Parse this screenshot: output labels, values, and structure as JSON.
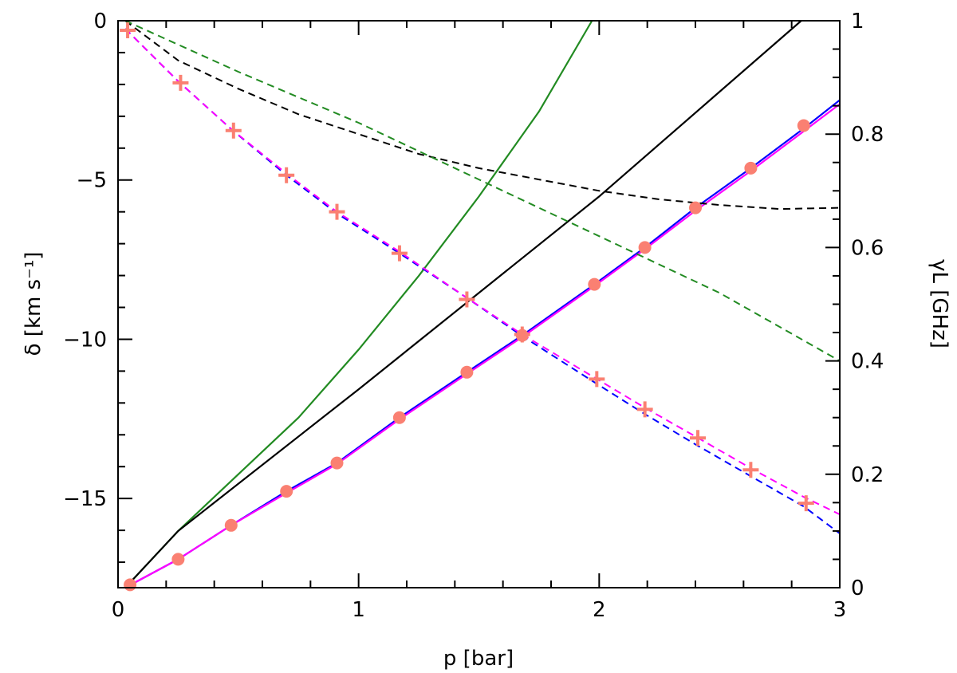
{
  "chart_data": {
    "type": "line",
    "x_axis": {
      "label": "p  [bar]",
      "range": [
        0,
        3
      ],
      "ticks": [
        "0",
        "1",
        "2",
        "3"
      ],
      "tick_values": [
        0,
        1,
        2,
        3
      ]
    },
    "y_left": {
      "label": "δ  [km s⁻¹]",
      "range": [
        -17.8,
        0
      ],
      "ticks": [
        "0",
        "−5",
        "−10",
        "−15"
      ],
      "tick_values": [
        0,
        -5,
        -10,
        -15
      ]
    },
    "y_right": {
      "label": "γL  [GHz]",
      "range": [
        0,
        1
      ],
      "ticks": [
        "0",
        "0.2",
        "0.4",
        "0.6",
        "0.8",
        "1"
      ],
      "tick_values": [
        0,
        0.2,
        0.4,
        0.6,
        0.8,
        1
      ]
    },
    "grid": false,
    "legend": "none",
    "series": [
      {
        "axis": "right",
        "style": "solid",
        "color": "#228b22",
        "x": [
          0.03,
          0.25,
          0.5,
          0.75,
          1.0,
          1.25,
          1.5,
          1.75,
          1.97
        ],
        "y": [
          0.0,
          0.1,
          0.2,
          0.3,
          0.42,
          0.55,
          0.69,
          0.84,
          1.0
        ]
      },
      {
        "axis": "right",
        "style": "solid",
        "color": "#000000",
        "x": [
          0.03,
          0.25,
          1.0,
          2.0,
          2.84
        ],
        "y": [
          0.0,
          0.1,
          0.35,
          0.69,
          1.0
        ]
      },
      {
        "axis": "right",
        "style": "solid",
        "color": "#0000ff",
        "x": [
          0.03,
          0.25,
          0.47,
          0.7,
          0.91,
          1.17,
          1.45,
          1.68,
          1.98,
          2.19,
          2.4,
          2.63,
          2.85,
          3.0
        ],
        "y": [
          0.0,
          0.05,
          0.11,
          0.17,
          0.22,
          0.3,
          0.38,
          0.445,
          0.535,
          0.6,
          0.67,
          0.74,
          0.81,
          0.86
        ]
      },
      {
        "axis": "right",
        "style": "solid",
        "color": "#ff00ff",
        "x": [
          0.03,
          0.25,
          0.47,
          0.7,
          0.91,
          1.17,
          1.45,
          1.68,
          1.98,
          2.19,
          2.4,
          2.63,
          2.85,
          3.0
        ],
        "y": [
          0.0,
          0.05,
          0.11,
          0.167,
          0.218,
          0.297,
          0.377,
          0.442,
          0.532,
          0.597,
          0.665,
          0.735,
          0.805,
          0.853
        ]
      },
      {
        "axis": "left",
        "style": "dashed",
        "color": "#0000ff",
        "x": [
          0.03,
          0.25,
          0.47,
          0.7,
          0.91,
          1.17,
          1.45,
          1.68,
          1.98,
          2.19,
          2.4,
          2.63,
          2.85,
          3.0
        ],
        "y": [
          -0.25,
          -1.9,
          -3.4,
          -4.85,
          -6.05,
          -7.3,
          -8.7,
          -9.9,
          -11.35,
          -12.35,
          -13.3,
          -14.3,
          -15.25,
          -16.1
        ]
      },
      {
        "axis": "left",
        "style": "dashed",
        "color": "#ff00ff",
        "x": [
          0.03,
          0.25,
          0.47,
          0.7,
          0.91,
          1.17,
          1.45,
          1.68,
          1.98,
          2.19,
          2.4,
          2.63,
          2.85,
          3.0
        ],
        "y": [
          -0.25,
          -1.9,
          -3.4,
          -4.8,
          -6.0,
          -7.25,
          -8.7,
          -9.85,
          -11.2,
          -12.15,
          -13.05,
          -14.05,
          -14.95,
          -15.5
        ]
      },
      {
        "axis": "right",
        "style": "dashed",
        "color": "#000000",
        "x": [
          0.03,
          0.25,
          0.5,
          0.75,
          1.0,
          1.25,
          1.5,
          1.75,
          2.0,
          2.25,
          2.5,
          2.75,
          3.0
        ],
        "y": [
          1.0,
          0.93,
          0.88,
          0.835,
          0.8,
          0.765,
          0.74,
          0.72,
          0.7,
          0.685,
          0.675,
          0.668,
          0.67
        ]
      },
      {
        "axis": "right",
        "style": "dashed",
        "color": "#228b22",
        "x": [
          0.03,
          0.5,
          1.0,
          1.5,
          2.0,
          2.5,
          3.0
        ],
        "y": [
          1.0,
          0.91,
          0.82,
          0.72,
          0.62,
          0.52,
          0.4
        ]
      }
    ],
    "markers": [
      {
        "shape": "circle",
        "axis": "right",
        "color": "#fa8072",
        "x": [
          0.05,
          0.25,
          0.47,
          0.7,
          0.91,
          1.17,
          1.45,
          1.68,
          1.98,
          2.19,
          2.4,
          2.63,
          2.85
        ],
        "y": [
          0.005,
          0.05,
          0.11,
          0.17,
          0.22,
          0.3,
          0.38,
          0.445,
          0.535,
          0.6,
          0.67,
          0.74,
          0.815
        ]
      },
      {
        "shape": "plus",
        "axis": "left",
        "color": "#fa8072",
        "x": [
          0.04,
          0.26,
          0.48,
          0.7,
          0.91,
          1.17,
          1.45,
          1.68,
          1.99,
          2.19,
          2.41,
          2.63,
          2.86
        ],
        "y": [
          -0.3,
          -1.95,
          -3.45,
          -4.85,
          -6.0,
          -7.3,
          -8.75,
          -9.85,
          -11.25,
          -12.2,
          -13.1,
          -14.1,
          -15.15
        ]
      }
    ]
  }
}
